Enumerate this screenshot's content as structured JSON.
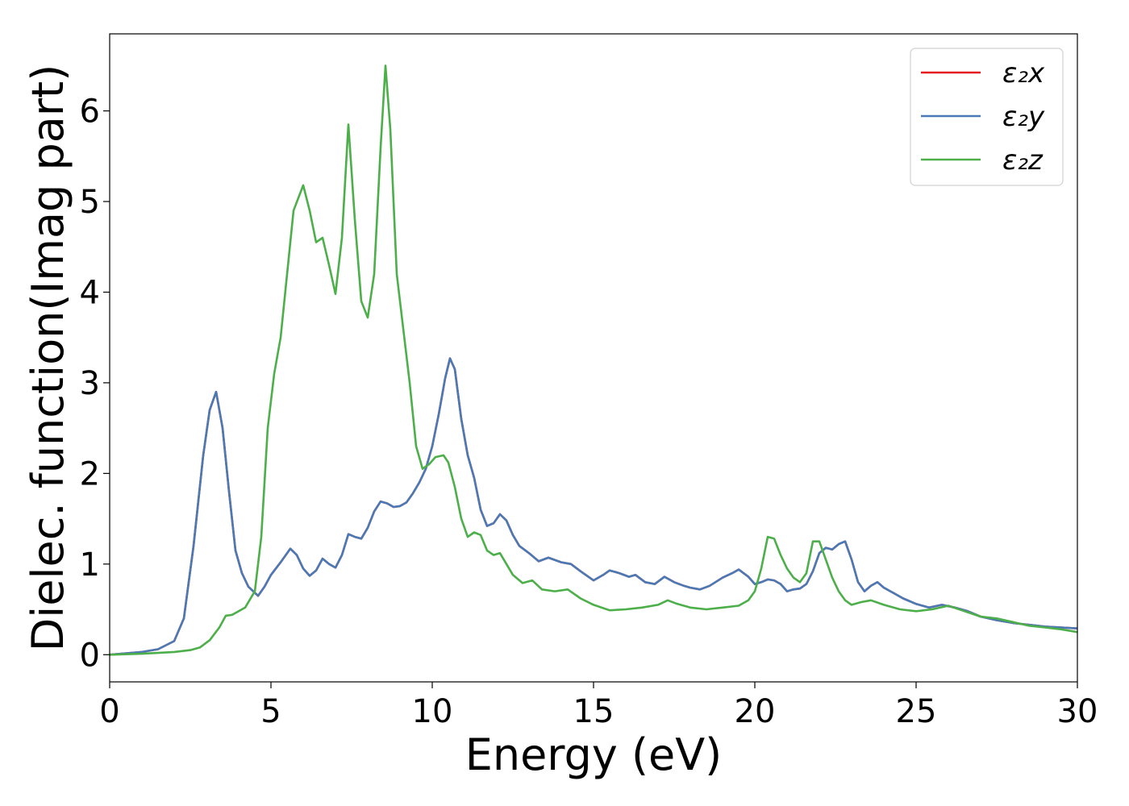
{
  "chart_data": {
    "type": "line",
    "xlabel": "Energy (eV)",
    "ylabel": "Dielec. function(Imag part)",
    "xlim": [
      0,
      30
    ],
    "ylim": [
      -0.3,
      6.85
    ],
    "xticks": [
      0,
      5,
      10,
      15,
      20,
      25,
      30
    ],
    "yticks": [
      0,
      1,
      2,
      3,
      4,
      5,
      6
    ],
    "grid": false,
    "legend_position": "top-right",
    "series": [
      {
        "name": "ε₂x",
        "color": "#e41a1c",
        "x": [
          0,
          1,
          1.5,
          2,
          2.3,
          2.6,
          2.9,
          3.1,
          3.3,
          3.5,
          3.7,
          3.9,
          4.1,
          4.3,
          4.6,
          4.8,
          5,
          5.3,
          5.6,
          5.8,
          6,
          6.2,
          6.4,
          6.6,
          6.8,
          7,
          7.2,
          7.4,
          7.6,
          7.8,
          8,
          8.2,
          8.4,
          8.6,
          8.8,
          9,
          9.2,
          9.4,
          9.6,
          9.8,
          10,
          10.2,
          10.4,
          10.55,
          10.7,
          10.9,
          11.1,
          11.3,
          11.5,
          11.7,
          11.9,
          12.1,
          12.3,
          12.5,
          12.7,
          13,
          13.3,
          13.6,
          14,
          14.3,
          14.6,
          15,
          15.3,
          15.5,
          15.8,
          16.1,
          16.3,
          16.6,
          16.9,
          17.2,
          17.5,
          17.8,
          18,
          18.3,
          18.6,
          19,
          19.3,
          19.5,
          19.8,
          20,
          20.2,
          20.4,
          20.6,
          20.8,
          21,
          21.2,
          21.4,
          21.6,
          21.8,
          22,
          22.2,
          22.4,
          22.6,
          22.8,
          23,
          23.2,
          23.4,
          23.6,
          23.8,
          24,
          24.3,
          24.6,
          25,
          25.4,
          25.8,
          26.2,
          26.6,
          27,
          27.5,
          28,
          28.5,
          29,
          29.5,
          30
        ],
        "y": [
          0,
          0.03,
          0.06,
          0.15,
          0.4,
          1.2,
          2.2,
          2.7,
          2.9,
          2.5,
          1.8,
          1.15,
          0.9,
          0.75,
          0.65,
          0.75,
          0.88,
          1.02,
          1.17,
          1.1,
          0.95,
          0.87,
          0.93,
          1.06,
          1.0,
          0.96,
          1.1,
          1.33,
          1.3,
          1.28,
          1.4,
          1.58,
          1.69,
          1.67,
          1.63,
          1.64,
          1.68,
          1.78,
          1.9,
          2.05,
          2.3,
          2.65,
          3.05,
          3.27,
          3.15,
          2.6,
          2.2,
          1.95,
          1.6,
          1.42,
          1.45,
          1.55,
          1.48,
          1.32,
          1.2,
          1.12,
          1.03,
          1.07,
          1.02,
          1.0,
          0.92,
          0.82,
          0.88,
          0.93,
          0.9,
          0.86,
          0.88,
          0.8,
          0.78,
          0.86,
          0.8,
          0.76,
          0.74,
          0.72,
          0.76,
          0.85,
          0.9,
          0.94,
          0.86,
          0.78,
          0.8,
          0.83,
          0.82,
          0.78,
          0.7,
          0.72,
          0.73,
          0.78,
          0.92,
          1.12,
          1.18,
          1.16,
          1.22,
          1.25,
          1.05,
          0.8,
          0.7,
          0.76,
          0.8,
          0.74,
          0.68,
          0.62,
          0.56,
          0.52,
          0.55,
          0.52,
          0.48,
          0.42,
          0.38,
          0.35,
          0.33,
          0.31,
          0.3,
          0.29
        ],
        "note_hidden": false
      },
      {
        "name": "ε₂y",
        "color": "#4a7ab5",
        "x": [
          0,
          1,
          1.5,
          2,
          2.3,
          2.6,
          2.9,
          3.1,
          3.3,
          3.5,
          3.7,
          3.9,
          4.1,
          4.3,
          4.6,
          4.8,
          5,
          5.3,
          5.6,
          5.8,
          6,
          6.2,
          6.4,
          6.6,
          6.8,
          7,
          7.2,
          7.4,
          7.6,
          7.8,
          8,
          8.2,
          8.4,
          8.6,
          8.8,
          9,
          9.2,
          9.4,
          9.6,
          9.8,
          10,
          10.2,
          10.4,
          10.55,
          10.7,
          10.9,
          11.1,
          11.3,
          11.5,
          11.7,
          11.9,
          12.1,
          12.3,
          12.5,
          12.7,
          13,
          13.3,
          13.6,
          14,
          14.3,
          14.6,
          15,
          15.3,
          15.5,
          15.8,
          16.1,
          16.3,
          16.6,
          16.9,
          17.2,
          17.5,
          17.8,
          18,
          18.3,
          18.6,
          19,
          19.3,
          19.5,
          19.8,
          20,
          20.2,
          20.4,
          20.6,
          20.8,
          21,
          21.2,
          21.4,
          21.6,
          21.8,
          22,
          22.2,
          22.4,
          22.6,
          22.8,
          23,
          23.2,
          23.4,
          23.6,
          23.8,
          24,
          24.3,
          24.6,
          25,
          25.4,
          25.8,
          26.2,
          26.6,
          27,
          27.5,
          28,
          28.5,
          29,
          29.5,
          30
        ],
        "y": [
          0,
          0.03,
          0.06,
          0.15,
          0.4,
          1.2,
          2.2,
          2.7,
          2.9,
          2.5,
          1.8,
          1.15,
          0.9,
          0.75,
          0.65,
          0.75,
          0.88,
          1.02,
          1.17,
          1.1,
          0.95,
          0.87,
          0.93,
          1.06,
          1.0,
          0.96,
          1.1,
          1.33,
          1.3,
          1.28,
          1.4,
          1.58,
          1.69,
          1.67,
          1.63,
          1.64,
          1.68,
          1.78,
          1.9,
          2.05,
          2.3,
          2.65,
          3.05,
          3.27,
          3.15,
          2.6,
          2.2,
          1.95,
          1.6,
          1.42,
          1.45,
          1.55,
          1.48,
          1.32,
          1.2,
          1.12,
          1.03,
          1.07,
          1.02,
          1.0,
          0.92,
          0.82,
          0.88,
          0.93,
          0.9,
          0.86,
          0.88,
          0.8,
          0.78,
          0.86,
          0.8,
          0.76,
          0.74,
          0.72,
          0.76,
          0.85,
          0.9,
          0.94,
          0.86,
          0.78,
          0.8,
          0.83,
          0.82,
          0.78,
          0.7,
          0.72,
          0.73,
          0.78,
          0.92,
          1.12,
          1.18,
          1.16,
          1.22,
          1.25,
          1.05,
          0.8,
          0.7,
          0.76,
          0.8,
          0.74,
          0.68,
          0.62,
          0.56,
          0.52,
          0.55,
          0.52,
          0.48,
          0.42,
          0.38,
          0.35,
          0.33,
          0.31,
          0.3,
          0.29
        ]
      },
      {
        "name": "ε₂z",
        "color": "#4daf4a",
        "x": [
          0,
          1,
          2,
          2.5,
          2.8,
          3.1,
          3.4,
          3.6,
          3.8,
          4,
          4.2,
          4.5,
          4.7,
          4.9,
          5.1,
          5.3,
          5.5,
          5.7,
          6,
          6.2,
          6.4,
          6.6,
          6.8,
          7,
          7.2,
          7.4,
          7.6,
          7.8,
          8,
          8.2,
          8.4,
          8.55,
          8.7,
          8.9,
          9.1,
          9.3,
          9.5,
          9.7,
          9.9,
          10.1,
          10.35,
          10.5,
          10.7,
          10.9,
          11.1,
          11.3,
          11.5,
          11.7,
          11.9,
          12.1,
          12.3,
          12.5,
          12.8,
          13.1,
          13.4,
          13.8,
          14.2,
          14.6,
          15,
          15.5,
          16,
          16.5,
          17,
          17.3,
          17.6,
          18,
          18.5,
          19,
          19.5,
          19.8,
          20,
          20.2,
          20.4,
          20.6,
          20.8,
          21,
          21.2,
          21.4,
          21.6,
          21.8,
          22,
          22.2,
          22.4,
          22.6,
          22.8,
          23,
          23.3,
          23.6,
          24,
          24.5,
          25,
          25.5,
          26,
          26.5,
          27,
          27.5,
          28,
          28.5,
          29,
          29.5,
          30
        ],
        "y": [
          0,
          0.01,
          0.03,
          0.05,
          0.08,
          0.16,
          0.3,
          0.43,
          0.44,
          0.48,
          0.52,
          0.7,
          1.3,
          2.5,
          3.1,
          3.5,
          4.2,
          4.9,
          5.18,
          4.9,
          4.55,
          4.6,
          4.3,
          3.98,
          4.6,
          5.85,
          4.8,
          3.9,
          3.72,
          4.2,
          5.6,
          6.5,
          5.8,
          4.2,
          3.6,
          3.0,
          2.3,
          2.05,
          2.1,
          2.18,
          2.2,
          2.12,
          1.85,
          1.5,
          1.3,
          1.35,
          1.32,
          1.15,
          1.1,
          1.12,
          1.0,
          0.88,
          0.79,
          0.82,
          0.72,
          0.7,
          0.72,
          0.62,
          0.55,
          0.49,
          0.5,
          0.52,
          0.55,
          0.6,
          0.56,
          0.52,
          0.5,
          0.52,
          0.54,
          0.6,
          0.7,
          0.95,
          1.3,
          1.28,
          1.1,
          0.95,
          0.85,
          0.8,
          0.9,
          1.25,
          1.25,
          1.05,
          0.85,
          0.7,
          0.6,
          0.55,
          0.58,
          0.6,
          0.55,
          0.5,
          0.48,
          0.5,
          0.54,
          0.48,
          0.42,
          0.4,
          0.36,
          0.32,
          0.3,
          0.28,
          0.25
        ]
      }
    ]
  }
}
